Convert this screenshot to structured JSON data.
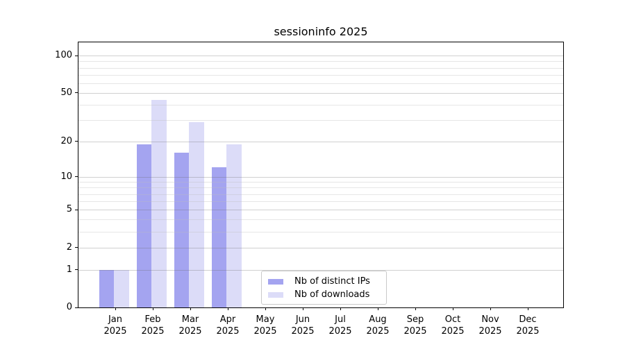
{
  "chart_data": {
    "type": "bar",
    "title": "sessioninfo 2025",
    "x_axis": {
      "categories": [
        "Jan",
        "Feb",
        "Mar",
        "Apr",
        "May",
        "Jun",
        "Jul",
        "Aug",
        "Sep",
        "Oct",
        "Nov",
        "Dec"
      ],
      "year_label": "2025"
    },
    "y_axis": {
      "scale": "log1p",
      "tick_values": [
        0,
        1,
        2,
        5,
        10,
        20,
        50,
        100
      ],
      "minor_gridline_values": [
        3,
        4,
        6,
        7,
        8,
        9,
        30,
        40,
        60,
        70,
        80,
        90
      ],
      "range": [
        0,
        128
      ],
      "grid": true
    },
    "series": [
      {
        "name": "Nb of distinct IPs",
        "color": "#a4a4f0",
        "values": [
          1,
          19,
          16,
          12,
          0,
          0,
          0,
          0,
          0,
          0,
          0,
          0
        ]
      },
      {
        "name": "Nb of downloads",
        "color": "#dcdcf8",
        "values": [
          1,
          44,
          29,
          19,
          0,
          0,
          0,
          0,
          0,
          0,
          0,
          0
        ]
      }
    ],
    "legend": {
      "position": "bottom-center",
      "entries": [
        "Nb of distinct IPs",
        "Nb of downloads"
      ]
    },
    "colors": {
      "spine": "#000000",
      "background": "#ffffff",
      "major_grid": "#c9c9c9",
      "minor_grid": "#e7e7e7"
    }
  }
}
